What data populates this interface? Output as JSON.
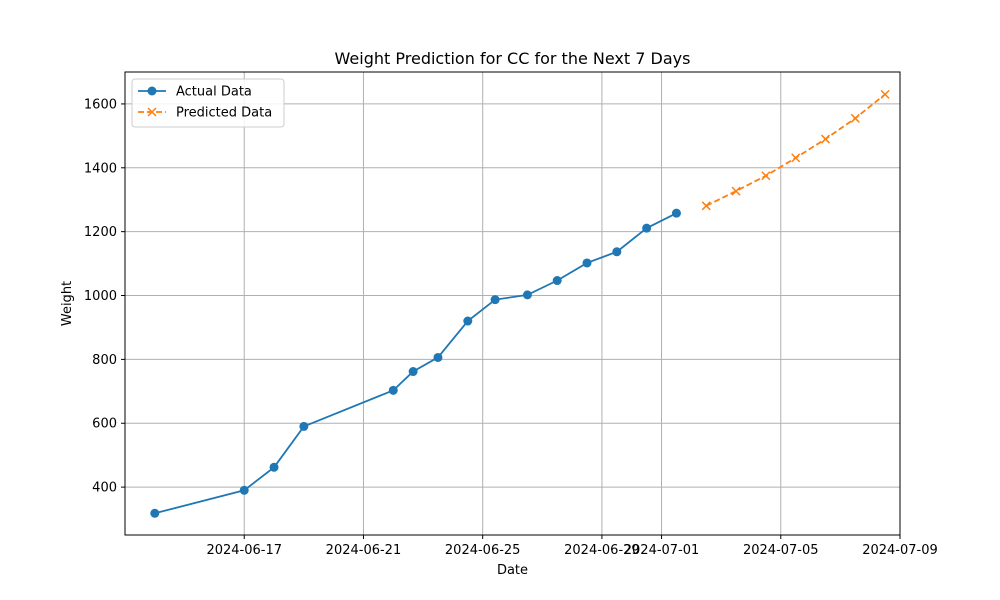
{
  "chart_data": {
    "type": "line",
    "title": "Weight Prediction for CC for the Next 7 Days",
    "xlabel": "Date",
    "ylabel": "Weight",
    "xlim": [
      "2024-06-13",
      "2024-07-09"
    ],
    "ylim": [
      250,
      1700
    ],
    "grid": true,
    "legend_position": "top-left",
    "x_ticks": [
      {
        "date": "2024-06-17",
        "label": "2024-06-17"
      },
      {
        "date": "2024-06-21",
        "label": "2024-06-21"
      },
      {
        "date": "2024-06-25",
        "label": "2024-06-25"
      },
      {
        "date": "2024-06-29",
        "label": "2024-06-29"
      },
      {
        "date": "2024-07-01",
        "label": "2024-07-01"
      },
      {
        "date": "2024-07-05",
        "label": "2024-07-05"
      },
      {
        "date": "2024-07-09",
        "label": "2024-07-09"
      }
    ],
    "y_ticks": [
      400,
      600,
      800,
      1000,
      1200,
      1400,
      1600
    ],
    "series": [
      {
        "name": "Actual Data",
        "color": "#1f77b4",
        "line_style": "solid",
        "marker": "circle",
        "points": [
          {
            "x": "2024-06-14",
            "y": 318
          },
          {
            "x": "2024-06-17",
            "y": 390
          },
          {
            "x": "2024-06-18",
            "y": 462
          },
          {
            "x": "2024-06-19",
            "y": 590
          },
          {
            "x": "2024-06-22",
            "y": 703
          },
          {
            "x": "2024-06-22T16:00",
            "y": 762
          },
          {
            "x": "2024-06-23T12:00",
            "y": 806
          },
          {
            "x": "2024-06-24T12:00",
            "y": 920
          },
          {
            "x": "2024-06-25T10:00",
            "y": 987
          },
          {
            "x": "2024-06-26T12:00",
            "y": 1002
          },
          {
            "x": "2024-06-27T12:00",
            "y": 1047
          },
          {
            "x": "2024-06-28T12:00",
            "y": 1102
          },
          {
            "x": "2024-06-29T12:00",
            "y": 1137
          },
          {
            "x": "2024-06-30T12:00",
            "y": 1211
          },
          {
            "x": "2024-07-01T12:00",
            "y": 1258
          }
        ]
      },
      {
        "name": "Predicted Data",
        "color": "#ff7f0e",
        "line_style": "dashed",
        "marker": "x",
        "points": [
          {
            "x": "2024-07-02T12:00",
            "y": 1281
          },
          {
            "x": "2024-07-03T12:00",
            "y": 1327
          },
          {
            "x": "2024-07-04T12:00",
            "y": 1375
          },
          {
            "x": "2024-07-05T12:00",
            "y": 1431
          },
          {
            "x": "2024-07-06T12:00",
            "y": 1490
          },
          {
            "x": "2024-07-07T12:00",
            "y": 1555
          },
          {
            "x": "2024-07-08T12:00",
            "y": 1630
          }
        ]
      }
    ]
  }
}
